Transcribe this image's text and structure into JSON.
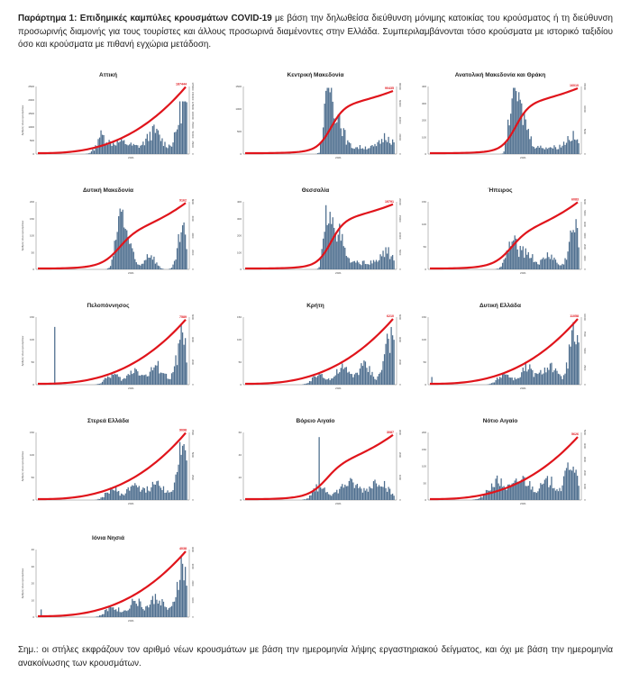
{
  "header": {
    "label": "Παράρτημα 1:",
    "title": "Επιδημικές καμπύλες κρουσμάτων COVID-19",
    "text": "με βάση την δηλωθείσα διεύθυνση μόνιμης κατοικίας του κρούσματος ή τη διεύθυνση προσωρινής διαμονής για τους τουρίστες και άλλους προσωρινά διαμένοντες στην Ελλάδα. Συμπεριλαμβάνονται τόσο κρούσματα με ιστορικό ταξιδίου όσο και κρούσματα με πιθανή εγχώρια μετάδοση."
  },
  "footer": {
    "text": "Σημ.: οι στήλες εκφράζουν τον αριθμό νέων κρουσμάτων με βάση την ημερομηνία λήψης εργαστηριακού δείγματος, και όχι με βάση την ημερομηνία ανακοίνωσης των κρουσμάτων."
  },
  "colors": {
    "bars": "#4f6f8f",
    "line": "#e0141b",
    "axis": "#555555"
  },
  "chart_data": [
    {
      "type": "bar",
      "title": "Αττική",
      "x_tick": "2021",
      "end_label": "187444",
      "ylim": [
        0,
        2500
      ],
      "y_ticks": [
        "0",
        "500",
        "1000",
        "1500",
        "2000",
        "2500"
      ],
      "y2_ticks": [
        "0",
        "25000",
        "50000",
        "75000",
        "100000",
        "125000",
        "150000",
        "175000"
      ],
      "ylabel": "Αριθμός νέων κρουσμάτων",
      "profile": "attiki",
      "peak": 0.78,
      "line_end": 0.98,
      "line_shape": "late"
    },
    {
      "type": "bar",
      "title": "Κεντρική Μακεδονία",
      "x_tick": "2021",
      "end_label": "90435",
      "ylim": [
        0,
        1500
      ],
      "y_ticks": [
        "0",
        "500",
        "1000",
        "1500"
      ],
      "y2_ticks": [
        "0",
        "20000",
        "40000",
        "60000",
        "80000"
      ],
      "ylabel": "",
      "profile": "north",
      "peak": 0.98,
      "line_end": 0.92,
      "line_shape": "s"
    },
    {
      "type": "bar",
      "title": "Ανατολική Μακεδονία και Θράκη",
      "x_tick": "2021",
      "end_label": "16010",
      "ylim": [
        0,
        400
      ],
      "y_ticks": [
        "0",
        "100",
        "200",
        "300",
        "400"
      ],
      "y2_ticks": [
        "0",
        "5000",
        "10000",
        "15000"
      ],
      "ylabel": "",
      "profile": "north",
      "peak": 0.98,
      "line_end": 0.96,
      "line_shape": "s"
    },
    {
      "type": "bar",
      "title": "Δυτική Μακεδονία",
      "x_tick": "2021",
      "end_label": "9162",
      "ylim": [
        0,
        200
      ],
      "y_ticks": [
        "0",
        "50",
        "100",
        "150",
        "200"
      ],
      "y2_ticks": [
        "0",
        "2000",
        "4000",
        "6000",
        "8000"
      ],
      "ylabel": "Αριθμός νέων κρουσμάτων",
      "profile": "wmac",
      "peak": 0.9,
      "line_end": 0.97,
      "line_shape": "mid"
    },
    {
      "type": "bar",
      "title": "Θεσσαλία",
      "x_tick": "2021",
      "end_label": "19791",
      "ylim": [
        0,
        400
      ],
      "y_ticks": [
        "0",
        "100",
        "200",
        "300",
        "400"
      ],
      "y2_ticks": [
        "0",
        "5000",
        "10000",
        "15000",
        "20000"
      ],
      "ylabel": "",
      "profile": "north",
      "peak": 0.95,
      "line_end": 0.95,
      "line_shape": "s"
    },
    {
      "type": "bar",
      "title": "Ήπειρος",
      "x_tick": "2021",
      "end_label": "6083",
      "ylim": [
        0,
        150
      ],
      "y_ticks": [
        "0",
        "50",
        "100",
        "150"
      ],
      "y2_ticks": [
        "0",
        "1000",
        "2000",
        "3000",
        "4000",
        "5000",
        "6000"
      ],
      "ylabel": "",
      "profile": "epirus",
      "peak": 0.85,
      "line_end": 0.98,
      "line_shape": "mid"
    },
    {
      "type": "bar",
      "title": "Πελοπόννησος",
      "x_tick": "2021",
      "end_label": "7589",
      "ylim": [
        0,
        150
      ],
      "y_ticks": [
        "0",
        "50",
        "100",
        "150"
      ],
      "y2_ticks": [
        "0",
        "2000",
        "4000",
        "6000"
      ],
      "ylabel": "Αριθμός νέων κρουσμάτων",
      "profile": "late",
      "peak": 0.9,
      "line_end": 0.95,
      "line_shape": "late"
    },
    {
      "type": "bar",
      "title": "Κρήτη",
      "x_tick": "2021",
      "end_label": "6210",
      "ylim": [
        0,
        150
      ],
      "y_ticks": [
        "0",
        "50",
        "100",
        "150"
      ],
      "y2_ticks": [
        "0",
        "2000",
        "4000",
        "6000"
      ],
      "ylabel": "",
      "profile": "late",
      "peak": 0.95,
      "line_end": 0.96,
      "line_shape": "late"
    },
    {
      "type": "bar",
      "title": "Δυτική Ελλάδα",
      "x_tick": "2021",
      "end_label": "11058",
      "ylim": [
        0,
        150
      ],
      "y_ticks": [
        "0",
        "50",
        "100",
        "150"
      ],
      "y2_ticks": [
        "0",
        "2500",
        "5000",
        "7500",
        "10000"
      ],
      "ylabel": "",
      "profile": "late",
      "peak": 0.95,
      "line_end": 0.96,
      "line_shape": "late"
    },
    {
      "type": "bar",
      "title": "Στερεά Ελλάδα",
      "x_tick": "2021",
      "end_label": "9098",
      "ylim": [
        0,
        150
      ],
      "y_ticks": [
        "0",
        "50",
        "100",
        "150"
      ],
      "y2_ticks": [
        "0",
        "2500",
        "5000",
        "7500"
      ],
      "ylabel": "Αριθμός νέων κρουσμάτων",
      "profile": "late",
      "peak": 0.95,
      "line_end": 0.98,
      "line_shape": "late"
    },
    {
      "type": "bar",
      "title": "Βόρειο Αιγαίο",
      "x_tick": "2021",
      "end_label": "3087",
      "ylim": [
        0,
        70
      ],
      "y_ticks": [
        "0",
        "20",
        "40",
        "60"
      ],
      "y2_ticks": [
        "0",
        "1000",
        "2000",
        "3000"
      ],
      "ylabel": "",
      "profile": "naeg",
      "peak": 0.95,
      "line_end": 0.95,
      "line_shape": "mid"
    },
    {
      "type": "bar",
      "title": "Νότιο Αιγαίο",
      "x_tick": "2021",
      "end_label": "5626",
      "ylim": [
        0,
        200
      ],
      "y_ticks": [
        "0",
        "50",
        "100",
        "150",
        "200"
      ],
      "y2_ticks": [
        "0",
        "1000",
        "2000",
        "3000",
        "4000",
        "5000"
      ],
      "ylabel": "",
      "profile": "saeg",
      "peak": 0.9,
      "line_end": 0.92,
      "line_shape": "late"
    },
    {
      "type": "bar",
      "title": "Ιόνια Νησιά",
      "x_tick": "2021",
      "end_label": "4038",
      "ylim": [
        0,
        40
      ],
      "y_ticks": [
        "0",
        "10",
        "20",
        "30",
        "40"
      ],
      "y2_ticks": [
        "0",
        "1000",
        "2000",
        "3000",
        "4000"
      ],
      "ylabel": "Αριθμός νέων κρουσμάτων",
      "profile": "late",
      "peak": 0.95,
      "line_end": 0.96,
      "line_shape": "late"
    }
  ]
}
